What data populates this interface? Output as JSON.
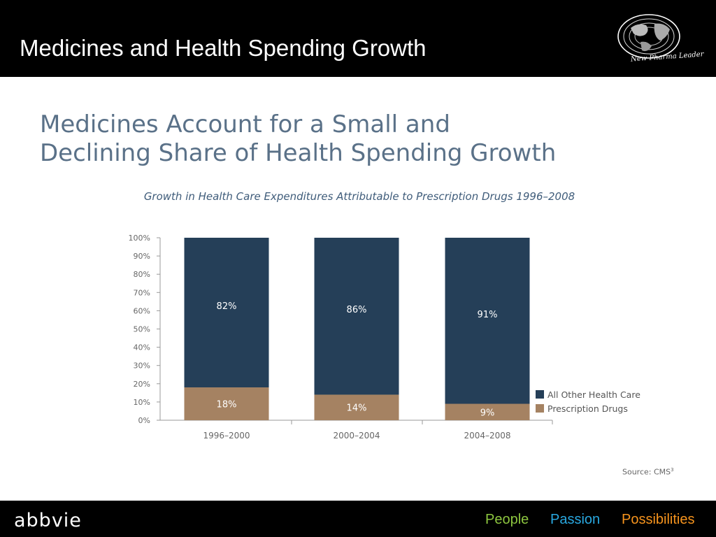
{
  "slide": {
    "title": "Medicines and Health Spending Growth",
    "logo_caption": "New Pharma Leader",
    "headline_line1": "Medicines Account for a Small and",
    "headline_line2": "Declining Share of Health Spending Growth",
    "source_text": "Source: CMS",
    "source_superscript": "3"
  },
  "footer": {
    "brand": "abbvie",
    "taglines": [
      {
        "text": "People",
        "color": "#8dc63f"
      },
      {
        "text": "Passion",
        "color": "#29a8e0"
      },
      {
        "text": "Possibilities",
        "color": "#f7941d"
      }
    ]
  },
  "colors": {
    "all_other": "#253f58",
    "prescription": "#a58262",
    "axis": "#999999",
    "tick_text": "#666666",
    "label_light": "#ffffff"
  },
  "chart_data": {
    "type": "bar",
    "stacked": true,
    "title": "Growth in Health Care Expenditures Attributable to Prescription Drugs 1996–2008",
    "categories": [
      "1996–2000",
      "2000–2004",
      "2004–2008"
    ],
    "series": [
      {
        "name": "Prescription Drugs",
        "values": [
          18,
          14,
          9
        ],
        "labels": [
          "18%",
          "14%",
          "9%"
        ]
      },
      {
        "name": "All Other Health Care",
        "values": [
          82,
          86,
          91
        ],
        "labels": [
          "82%",
          "86%",
          "91%"
        ]
      }
    ],
    "ylim": [
      0,
      100
    ],
    "yticks": [
      "0%",
      "10%",
      "20%",
      "30%",
      "40%",
      "50%",
      "60%",
      "70%",
      "80%",
      "90%",
      "100%"
    ],
    "legend": [
      "All Other Health Care",
      "Prescription Drugs"
    ],
    "legend_position": "right",
    "grid": false
  }
}
